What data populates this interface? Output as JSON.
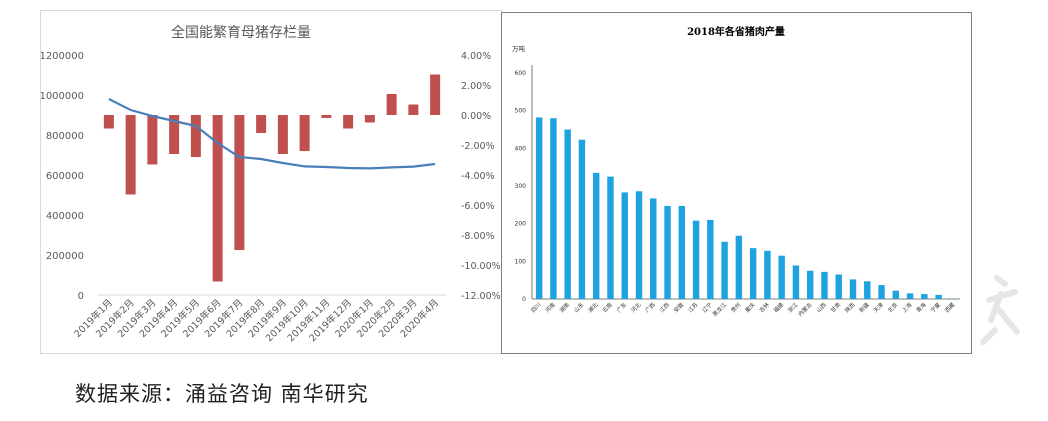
{
  "source_note": "数据来源：涌益咨询 南华研究",
  "colors": {
    "bar_left": "#c0504d",
    "line_left": "#4a7ebb",
    "bar_right": "#1fa3e0",
    "axis": "#7f7f7f",
    "text": "#595959"
  },
  "chart_data": [
    {
      "type": "bar",
      "title": "全国能繁育母猪存栏量",
      "categories": [
        "2019年1月",
        "2019年2月",
        "2019年3月",
        "2019年4月",
        "2019年5月",
        "2019年6月",
        "2019年7月",
        "2019年8月",
        "2019年9月",
        "2019年10月",
        "2019年11月",
        "2019年12月",
        "2020年1月",
        "2020年2月",
        "2020年3月",
        "2020年4月"
      ],
      "series": [
        {
          "axis": "right",
          "type": "bar",
          "values": [
            -0.9,
            -5.3,
            -3.3,
            -2.6,
            -2.8,
            -11.1,
            -9.0,
            -1.2,
            -2.6,
            -2.4,
            -0.2,
            -0.9,
            -0.5,
            1.4,
            0.7,
            2.7
          ]
        },
        {
          "axis": "left",
          "type": "line",
          "values": [
            980000,
            925000,
            895000,
            870000,
            845000,
            760000,
            690000,
            680000,
            660000,
            643000,
            640000,
            635000,
            633000,
            638000,
            642000,
            655000
          ]
        }
      ],
      "y_left": {
        "ticks": [
          "0",
          "200000",
          "400000",
          "600000",
          "800000",
          "1000000",
          "1200000"
        ],
        "ylim": [
          0,
          1200000
        ]
      },
      "y_right": {
        "ticks": [
          "4.00%",
          "2.00%",
          "0.00%",
          "-2.00%",
          "-4.00%",
          "-6.00%",
          "-8.00%",
          "-10.00%",
          "-12.00%"
        ],
        "ylim": [
          -12,
          4
        ]
      },
      "grid": false
    },
    {
      "type": "bar",
      "title": "2018年各省猪肉产量",
      "ylabel": "万吨",
      "categories": [
        "四川",
        "河南",
        "湖南",
        "山东",
        "湖北",
        "云南",
        "广东",
        "河北",
        "广西",
        "江西",
        "安徽",
        "江苏",
        "辽宁",
        "黑龙江",
        "贵州",
        "重庆",
        "吉林",
        "福建",
        "浙江",
        "内蒙古",
        "山西",
        "甘肃",
        "陕西",
        "新疆",
        "天津",
        "北京",
        "上海",
        "青海",
        "宁夏",
        "西藏"
      ],
      "values": [
        482,
        480,
        450,
        423,
        335,
        325,
        283,
        286,
        267,
        247,
        247,
        208,
        210,
        152,
        168,
        135,
        128,
        115,
        89,
        75,
        72,
        65,
        52,
        47,
        37,
        22,
        15,
        13,
        11,
        1
      ],
      "y_ticks": [
        "0",
        "100",
        "200",
        "300",
        "400",
        "500",
        "600"
      ],
      "ylim": [
        0,
        600
      ],
      "grid": false
    }
  ]
}
